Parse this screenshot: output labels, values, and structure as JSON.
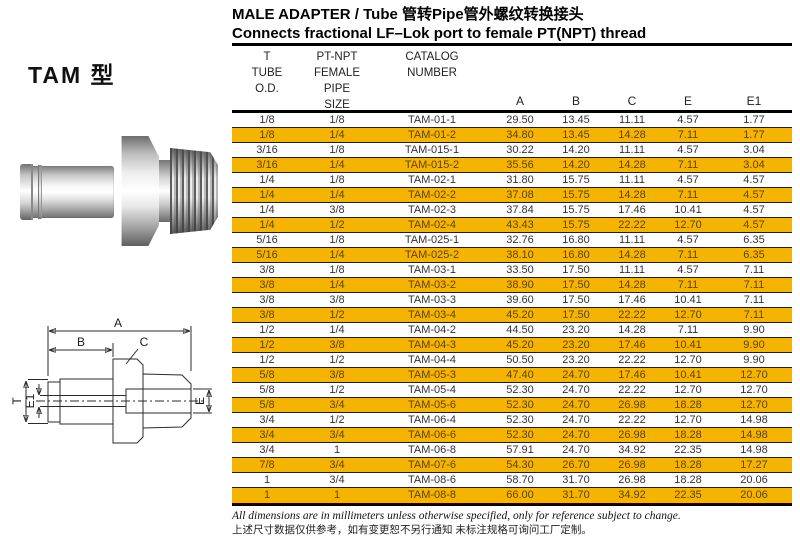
{
  "page": {
    "model_label": "TAM 型",
    "title_line1": "MALE ADAPTER / Tube 管转Pipe管外螺纹转换接头",
    "title_line2": "Connects fractional LF–Lok port to female PT(NPT) thread",
    "footnote_en": "All dimensions are in millimeters unless otherwise specified, only for reference subject to change.",
    "footnote_zh": "上述尺寸数据仅供参考，如有变更恕不另行通知 未标注规格可询问工厂定制。"
  },
  "colors": {
    "highlight": "#f4b400",
    "highlight_text": "#5e4200",
    "row_text": "#333333"
  },
  "diagram": {
    "labels": {
      "a": "A",
      "b": "B",
      "c": "C",
      "t": "T",
      "e1": "E1",
      "e": "E"
    }
  },
  "table": {
    "header": {
      "col1_lines": [
        "T",
        "TUBE",
        "O.D."
      ],
      "col2_lines": [
        "PT-NPT",
        "FEMALE",
        "PIPE",
        "SIZE"
      ],
      "col3_lines": [
        "CATALOG",
        "NUMBER"
      ],
      "dim_cols": [
        "A",
        "B",
        "C",
        "E",
        "E1"
      ]
    },
    "rows": [
      {
        "t": "1/8",
        "pt": "1/8",
        "cat": "TAM-01-1",
        "a": "29.50",
        "b": "13.45",
        "c": "11.11",
        "e": "4.57",
        "e1": "1.77",
        "hl": false
      },
      {
        "t": "1/8",
        "pt": "1/4",
        "cat": "TAM-01-2",
        "a": "34.80",
        "b": "13.45",
        "c": "14.28",
        "e": "7.11",
        "e1": "1.77",
        "hl": true
      },
      {
        "t": "3/16",
        "pt": "1/8",
        "cat": "TAM-015-1",
        "a": "30.22",
        "b": "14.20",
        "c": "11.11",
        "e": "4.57",
        "e1": "3.04",
        "hl": false
      },
      {
        "t": "3/16",
        "pt": "1/4",
        "cat": "TAM-015-2",
        "a": "35.56",
        "b": "14.20",
        "c": "14.28",
        "e": "7.11",
        "e1": "3.04",
        "hl": true
      },
      {
        "t": "1/4",
        "pt": "1/8",
        "cat": "TAM-02-1",
        "a": "31.80",
        "b": "15.75",
        "c": "11.11",
        "e": "4.57",
        "e1": "4.57",
        "hl": false
      },
      {
        "t": "1/4",
        "pt": "1/4",
        "cat": "TAM-02-2",
        "a": "37.08",
        "b": "15.75",
        "c": "14.28",
        "e": "7.11",
        "e1": "4.57",
        "hl": true
      },
      {
        "t": "1/4",
        "pt": "3/8",
        "cat": "TAM-02-3",
        "a": "37.84",
        "b": "15.75",
        "c": "17.46",
        "e": "10.41",
        "e1": "4.57",
        "hl": false
      },
      {
        "t": "1/4",
        "pt": "1/2",
        "cat": "TAM-02-4",
        "a": "43.43",
        "b": "15.75",
        "c": "22.22",
        "e": "12.70",
        "e1": "4.57",
        "hl": true
      },
      {
        "t": "5/16",
        "pt": "1/8",
        "cat": "TAM-025-1",
        "a": "32.76",
        "b": "16.80",
        "c": "11.11",
        "e": "4.57",
        "e1": "6.35",
        "hl": false
      },
      {
        "t": "5/16",
        "pt": "1/4",
        "cat": "TAM-025-2",
        "a": "38.10",
        "b": "16.80",
        "c": "14.28",
        "e": "7.11",
        "e1": "6.35",
        "hl": true
      },
      {
        "t": "3/8",
        "pt": "1/8",
        "cat": "TAM-03-1",
        "a": "33.50",
        "b": "17.50",
        "c": "11.11",
        "e": "4.57",
        "e1": "7.11",
        "hl": false
      },
      {
        "t": "3/8",
        "pt": "1/4",
        "cat": "TAM-03-2",
        "a": "38.90",
        "b": "17.50",
        "c": "14.28",
        "e": "7.11",
        "e1": "7.11",
        "hl": true
      },
      {
        "t": "3/8",
        "pt": "3/8",
        "cat": "TAM-03-3",
        "a": "39.60",
        "b": "17.50",
        "c": "17.46",
        "e": "10.41",
        "e1": "7.11",
        "hl": false
      },
      {
        "t": "3/8",
        "pt": "1/2",
        "cat": "TAM-03-4",
        "a": "45.20",
        "b": "17.50",
        "c": "22.22",
        "e": "12.70",
        "e1": "7.11",
        "hl": true
      },
      {
        "t": "1/2",
        "pt": "1/4",
        "cat": "TAM-04-2",
        "a": "44.50",
        "b": "23.20",
        "c": "14.28",
        "e": "7.11",
        "e1": "9.90",
        "hl": false
      },
      {
        "t": "1/2",
        "pt": "3/8",
        "cat": "TAM-04-3",
        "a": "45.20",
        "b": "23.20",
        "c": "17.46",
        "e": "10.41",
        "e1": "9.90",
        "hl": true
      },
      {
        "t": "1/2",
        "pt": "1/2",
        "cat": "TAM-04-4",
        "a": "50.50",
        "b": "23.20",
        "c": "22.22",
        "e": "12.70",
        "e1": "9.90",
        "hl": false
      },
      {
        "t": "5/8",
        "pt": "3/8",
        "cat": "TAM-05-3",
        "a": "47.40",
        "b": "24.70",
        "c": "17.46",
        "e": "10.41",
        "e1": "12.70",
        "hl": true
      },
      {
        "t": "5/8",
        "pt": "1/2",
        "cat": "TAM-05-4",
        "a": "52.30",
        "b": "24.70",
        "c": "22.22",
        "e": "12.70",
        "e1": "12.70",
        "hl": false
      },
      {
        "t": "5/8",
        "pt": "3/4",
        "cat": "TAM-05-6",
        "a": "52.30",
        "b": "24.70",
        "c": "26.98",
        "e": "18.28",
        "e1": "12.70",
        "hl": true
      },
      {
        "t": "3/4",
        "pt": "1/2",
        "cat": "TAM-06-4",
        "a": "52.30",
        "b": "24.70",
        "c": "22.22",
        "e": "12.70",
        "e1": "14.98",
        "hl": false
      },
      {
        "t": "3/4",
        "pt": "3/4",
        "cat": "TAM-06-6",
        "a": "52.30",
        "b": "24.70",
        "c": "26.98",
        "e": "18.28",
        "e1": "14.98",
        "hl": true
      },
      {
        "t": "3/4",
        "pt": "1",
        "cat": "TAM-06-8",
        "a": "57.91",
        "b": "24.70",
        "c": "34.92",
        "e": "22.35",
        "e1": "14.98",
        "hl": false
      },
      {
        "t": "7/8",
        "pt": "3/4",
        "cat": "TAM-07-6",
        "a": "54.30",
        "b": "26.70",
        "c": "26.98",
        "e": "18.28",
        "e1": "17.27",
        "hl": true
      },
      {
        "t": "1",
        "pt": "3/4",
        "cat": "TAM-08-6",
        "a": "58.70",
        "b": "31.70",
        "c": "26.98",
        "e": "18.28",
        "e1": "20.06",
        "hl": false
      },
      {
        "t": "1",
        "pt": "1",
        "cat": "TAM-08-8",
        "a": "66.00",
        "b": "31.70",
        "c": "34.92",
        "e": "22.35",
        "e1": "20.06",
        "hl": true
      }
    ]
  }
}
